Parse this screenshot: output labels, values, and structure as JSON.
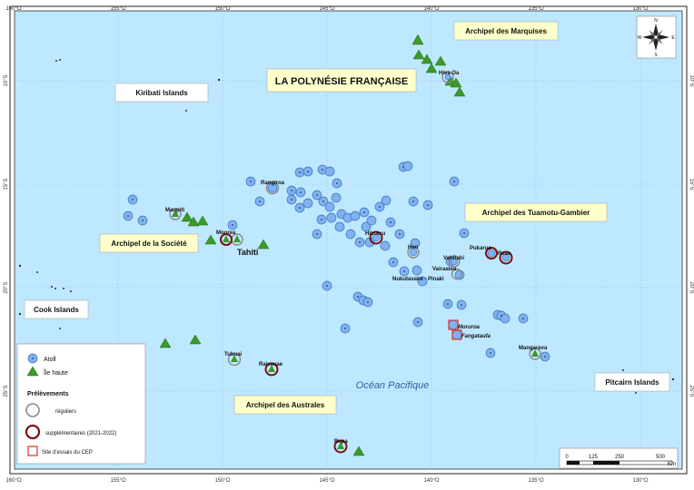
{
  "title": "LA POLYNÉSIE FRANÇAISE",
  "regions": [
    {
      "id": "marquises",
      "label": "Archipel des Marquises"
    },
    {
      "id": "kiribati",
      "label": "Kiribati Islands"
    },
    {
      "id": "tuamotu",
      "label": "Archipel des Tuamotu-Gambier"
    },
    {
      "id": "societe",
      "label": "Archipel de la Société"
    },
    {
      "id": "cook",
      "label": "Cook Islands"
    },
    {
      "id": "pitcairn",
      "label": "Pitcairn Islands"
    },
    {
      "id": "australes",
      "label": "Archipel des Australes"
    }
  ],
  "ocean_label": "Océan Pacifique",
  "lon_ticks": [
    "160°O",
    "155°O",
    "150°O",
    "145°O",
    "140°O",
    "135°O",
    "130°O"
  ],
  "lat_ticks": [
    "10°S",
    "15°S",
    "20°S",
    "25°S"
  ],
  "place_labels": {
    "hiva_oa": "Hiva Oa",
    "rangiroa": "Rangiroa",
    "maupiti": "Maupiti",
    "moorea": "Moorea",
    "tahiti": "Tahiti",
    "hikueru": "Hikueru",
    "hao": "Hao",
    "vahitahi": "Vahitahi",
    "pukarua": "Pukarua",
    "reao": "Reao",
    "vairaatea": "Vairaatea",
    "nukutavake": "Nukutavake - Pinaki",
    "moruroa": "Moruroa",
    "fangataufa": "Fangataufa",
    "tubuai": "Tubuai",
    "raivavae": "Raivavae",
    "mangareva": "Mangareva",
    "rapa": "Rapa"
  },
  "legend": {
    "atoll": "Atoll",
    "ile_haute": "Île haute",
    "prelevements": "Prélèvements",
    "reguliers": "réguliers",
    "supplementaires": "supplémentaires (2021-2022)",
    "site_cep": "Site d'essais du CEP"
  },
  "scale_bar": {
    "ticks": [
      "0",
      "125",
      "250",
      "500"
    ],
    "unit": "Km"
  },
  "compass": {
    "n": "N",
    "s": "S",
    "e": "E",
    "w": "W"
  },
  "colors": {
    "ocean": "#bee8ff",
    "atoll_fill": "#7fb2ee",
    "atoll_stroke": "#3a6fc0",
    "high_island": "#3a9a2a",
    "sample_supp": "#7a1010",
    "cep_site": "#e03030",
    "label_box": "#ffffcc",
    "grid": "#9fc4e0",
    "ocean_text": "#3060a0"
  }
}
